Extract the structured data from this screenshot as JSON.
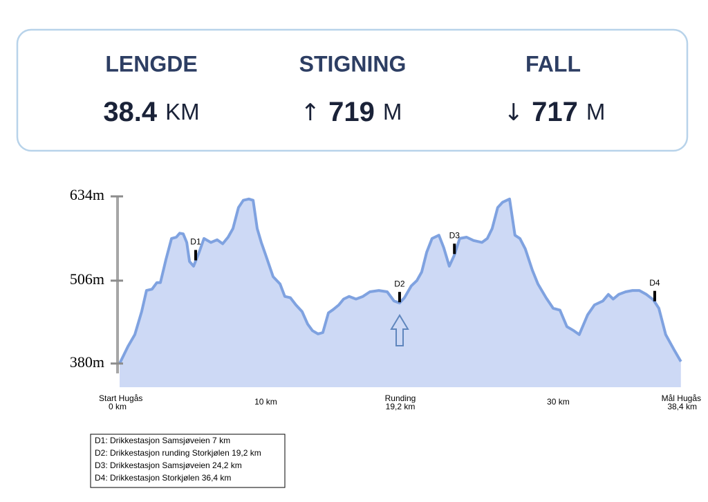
{
  "stats": [
    {
      "label": "LENGDE",
      "value": "38.4",
      "unit": "KM"
    },
    {
      "label": "STIGNING",
      "arrow": "↑",
      "value": "719",
      "unit": "M"
    },
    {
      "label": "FALL",
      "arrow": "↓",
      "value": "717",
      "unit": "M"
    }
  ],
  "chart_data": {
    "type": "area",
    "x": [
      0,
      0.57,
      1.04,
      1.51,
      1.84,
      2.22,
      2.55,
      2.79,
      3.17,
      3.55,
      3.88,
      4.11,
      4.35,
      4.59,
      4.78,
      5.06,
      5.44,
      5.77,
      6.24,
      6.67,
      7.05,
      7.42,
      7.75,
      8.13,
      8.46,
      8.84,
      9.13,
      9.41,
      9.69,
      10.02,
      10.5,
      10.97,
      11.3,
      11.68,
      12.06,
      12.48,
      12.86,
      13.19,
      13.57,
      13.9,
      14.28,
      14.61,
      14.99,
      15.32,
      15.7,
      16.17,
      16.64,
      17.12,
      17.73,
      18.3,
      18.77,
      19.15,
      19.48,
      19.95,
      20.33,
      20.66,
      21.0,
      21.37,
      21.84,
      22.17,
      22.55,
      22.88,
      23.26,
      23.73,
      24.21,
      24.78,
      25.15,
      25.48,
      25.86,
      26.19,
      26.67,
      27.04,
      27.38,
      27.75,
      28.23,
      28.61,
      29.17,
      29.65,
      30.12,
      30.59,
      31.06,
      31.44,
      32.01,
      32.48,
      33.05,
      33.43,
      33.76,
      34.14,
      34.61,
      35.08,
      35.55,
      36.03,
      36.5,
      36.88,
      37.35,
      37.92,
      38.39
    ],
    "y": [
      380,
      406,
      424,
      459,
      491,
      493,
      503,
      503,
      538,
      570,
      572,
      578,
      577,
      564,
      535,
      528,
      549,
      570,
      564,
      568,
      562,
      572,
      585,
      617,
      628,
      630,
      628,
      585,
      564,
      543,
      512,
      501,
      482,
      480,
      469,
      459,
      440,
      430,
      425,
      427,
      457,
      462,
      469,
      478,
      482,
      478,
      482,
      489,
      491,
      489,
      475,
      472,
      480,
      498,
      506,
      519,
      549,
      570,
      575,
      556,
      528,
      544,
      570,
      572,
      567,
      564,
      570,
      585,
      617,
      625,
      630,
      575,
      570,
      554,
      522,
      501,
      480,
      464,
      461,
      436,
      430,
      424,
      454,
      469,
      475,
      485,
      478,
      485,
      489,
      491,
      491,
      485,
      477,
      464,
      424,
      401,
      383
    ],
    "color": "#7fa2e0",
    "fill": "#cdd9f5",
    "xlim": [
      0,
      38.4
    ],
    "ylim": [
      344,
      634
    ],
    "yticks": [
      {
        "value": 380,
        "label": "380m"
      },
      {
        "value": 506,
        "label": "506m"
      },
      {
        "value": 634,
        "label": "634m"
      }
    ],
    "xticks": [
      {
        "value": 0,
        "name": "Start Hugås",
        "label": "0 km"
      },
      {
        "value": 10,
        "label": "10 km"
      },
      {
        "value": 19.2,
        "name": "Runding",
        "label": "19,2 km"
      },
      {
        "value": 30,
        "label": "30 km"
      },
      {
        "value": 38.4,
        "name": "Mål Hugås",
        "label": "38,4 km"
      }
    ],
    "annotations": [
      {
        "label": "D1",
        "x": 5.2
      },
      {
        "label": "D2",
        "x": 19.15
      },
      {
        "label": "D3",
        "x": 22.9
      },
      {
        "label": "D4",
        "x": 36.6
      }
    ],
    "legend": [
      "D1: Drikkestasjon Samsjøveien 7 km",
      "D2: Drikkestasjon runding Storkjølen 19,2 km",
      "D3: Drikkestasjon Samsjøveien 24,2 km",
      "D4: Drikkestasjon Storkjølen 36,4 km"
    ]
  }
}
